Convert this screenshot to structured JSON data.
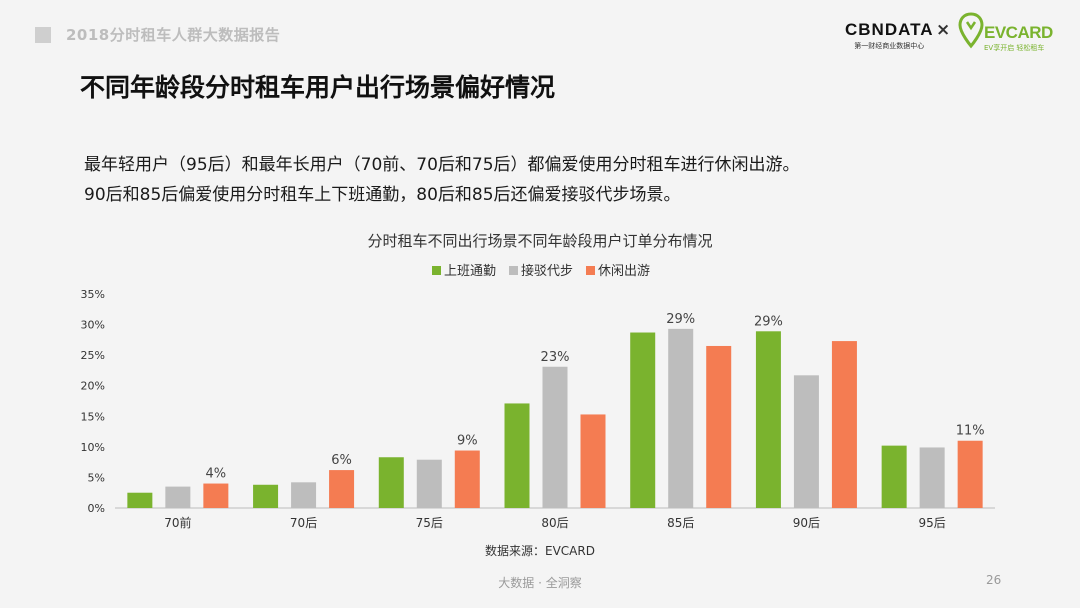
{
  "header": {
    "report_title": "2018分时租车人群大数据报告",
    "logo_cbn": "CBNDATA",
    "logo_cbn_sub": "第一财经商业数据中心",
    "logo_x": "×",
    "logo_ev": "EVCARD",
    "logo_ev_sub": "EV享开启 轻松租车"
  },
  "page_title": "不同年龄段分时租车用户出行场景偏好情况",
  "summary": {
    "line1": "最年轻用户（95后）和最年长用户（70前、70后和75后）都偏爱使用分时租车进行休闲出游。",
    "line2": "90后和85后偏爱使用分时租车上下班通勤，80后和85后还偏爱接驳代步场景。"
  },
  "chart_data": {
    "type": "bar",
    "title": "分时租车不同出行场景不同年龄段用户订单分布情况",
    "categories": [
      "70前",
      "70后",
      "75后",
      "80后",
      "85后",
      "90后",
      "95后"
    ],
    "series": [
      {
        "name": "上班通勤",
        "color": "#7ab32e",
        "values": [
          2.5,
          3.8,
          8.3,
          17.1,
          28.7,
          28.9,
          10.2
        ]
      },
      {
        "name": "接驳代步",
        "color": "#bdbdbd",
        "values": [
          3.5,
          4.2,
          7.9,
          23.1,
          29.3,
          21.7,
          9.9
        ]
      },
      {
        "name": "休闲出游",
        "color": "#f47c52",
        "values": [
          4.0,
          6.2,
          9.4,
          15.3,
          26.5,
          27.3,
          11.0
        ]
      }
    ],
    "data_labels": [
      {
        "category_index": 0,
        "series_index": 2,
        "text": "4%"
      },
      {
        "category_index": 1,
        "series_index": 2,
        "text": "6%"
      },
      {
        "category_index": 2,
        "series_index": 2,
        "text": "9%"
      },
      {
        "category_index": 3,
        "series_index": 1,
        "text": "23%"
      },
      {
        "category_index": 4,
        "series_index": 1,
        "text": "29%"
      },
      {
        "category_index": 5,
        "series_index": 0,
        "text": "29%"
      },
      {
        "category_index": 6,
        "series_index": 2,
        "text": "11%"
      }
    ],
    "y_ticks": [
      "0%",
      "5%",
      "10%",
      "15%",
      "20%",
      "25%",
      "30%",
      "35%"
    ],
    "ylim": [
      0,
      35
    ],
    "grid": false,
    "legend_position": "top-center",
    "source": "数据来源：EVCARD"
  },
  "footer": {
    "center": "大数据 · 全洞察",
    "page_number": "26"
  }
}
